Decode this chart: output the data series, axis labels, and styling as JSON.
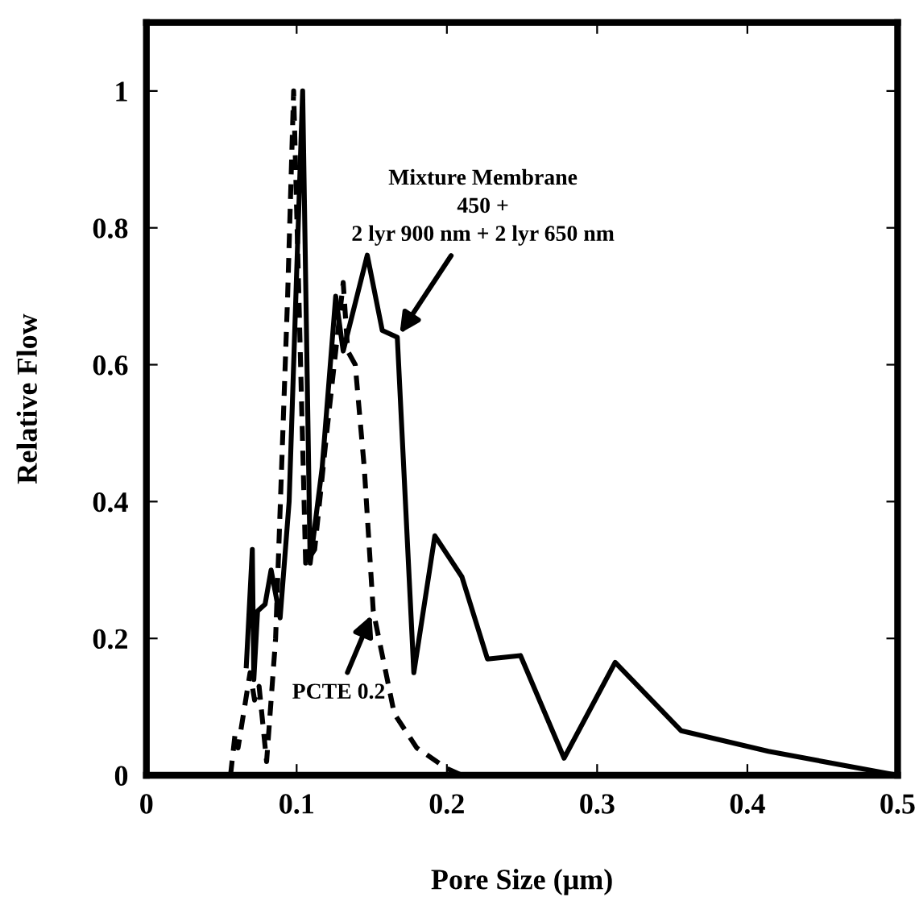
{
  "chart_data": {
    "type": "line",
    "xlabel": "Pore Size (μm)",
    "ylabel": "Relative Flow",
    "xlim": [
      0,
      0.5
    ],
    "ylim": [
      0,
      1.1
    ],
    "xticks": [
      0,
      0.1,
      0.2,
      0.3,
      0.4,
      0.5
    ],
    "yticks": [
      0,
      0.2,
      0.4,
      0.6,
      0.8,
      1
    ],
    "grid": false,
    "legend": false,
    "marker": "none",
    "series": [
      {
        "color": "#000000",
        "line_style": "solid",
        "x": [
          0.0665,
          0.0705,
          0.0715,
          0.074,
          0.079,
          0.083,
          0.089,
          0.095,
          0.104,
          0.109,
          0.117,
          0.126,
          0.131,
          0.147,
          0.157,
          0.167,
          0.178,
          0.192,
          0.21,
          0.227,
          0.249,
          0.278,
          0.312,
          0.356,
          0.414,
          0.5
        ],
        "values": [
          0.16,
          0.33,
          0.14,
          0.24,
          0.25,
          0.3,
          0.23,
          0.4,
          1.0,
          0.31,
          0.45,
          0.7,
          0.62,
          0.76,
          0.65,
          0.64,
          0.15,
          0.35,
          0.29,
          0.17,
          0.175,
          0.025,
          0.165,
          0.065,
          0.035,
          0.0
        ]
      },
      {
        "color": "#000000",
        "line_style": "dashed",
        "x": [
          0.056,
          0.059,
          0.061,
          0.069,
          0.072,
          0.075,
          0.08,
          0.086,
          0.09,
          0.094,
          0.098,
          0.106,
          0.112,
          0.12,
          0.131,
          0.134,
          0.139,
          0.145,
          0.151,
          0.165,
          0.18,
          0.2,
          0.21
        ],
        "values": [
          0.0,
          0.06,
          0.04,
          0.15,
          0.11,
          0.13,
          0.02,
          0.2,
          0.45,
          0.7,
          1.0,
          0.31,
          0.33,
          0.5,
          0.72,
          0.62,
          0.6,
          0.45,
          0.24,
          0.09,
          0.04,
          0.01,
          0.0
        ]
      }
    ],
    "annotations": [
      {
        "text": "Mixture Membrane\n450 +\n2 lyr 900 nm + 2 lyr 650 nm",
        "x": 0.167,
        "y": 0.64
      },
      {
        "text": "PCTE 0.2",
        "x": 0.151,
        "y": 0.24
      }
    ]
  }
}
